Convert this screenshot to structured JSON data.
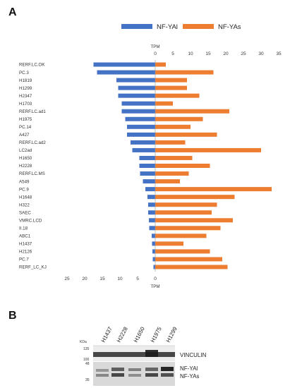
{
  "panels": {
    "a": {
      "letter": "A"
    },
    "b": {
      "letter": "B"
    }
  },
  "chart_data": {
    "type": "bar",
    "orientation": "horizontal",
    "layout": "diverging",
    "axis_title_top": "TPM",
    "axis_title_bottom": "TPM",
    "left_ticks": [
      25,
      20,
      15,
      10,
      5,
      0
    ],
    "right_ticks": [
      0,
      5,
      10,
      15,
      20,
      25,
      30,
      35
    ],
    "left_range": [
      0,
      25
    ],
    "right_range": [
      0,
      35
    ],
    "legend_position": "top",
    "categories": [
      "RERF.LC.OK",
      "PC.3",
      "H1819",
      "H1299",
      "H2347",
      "H1703",
      "RERF.LC.ad1",
      "H1975",
      "PC.14",
      "A427",
      "RERF.LC.ad2",
      "LC2ad",
      "H1650",
      "H2228",
      "RERF.LC.MS",
      "A549",
      "PC.9",
      "H1648",
      "H322",
      "SAEC",
      "VMRC.LCD",
      "II.18",
      "ABC1",
      "H1437",
      "H2126",
      "PC.7",
      "RERF_LC_KJ"
    ],
    "series": [
      {
        "name": "NF-YAl",
        "color": "#4472c4",
        "side": "left",
        "values": [
          17.5,
          16.5,
          11,
          10.5,
          10.5,
          9.5,
          9.5,
          8.5,
          8.0,
          8.0,
          7.0,
          6.5,
          4.5,
          4.5,
          4.3,
          3.5,
          2.8,
          2.2,
          2.0,
          2.0,
          1.8,
          1.7,
          1.0,
          0.9,
          0.8,
          0.7,
          0.5
        ]
      },
      {
        "name": "NF-YAs",
        "color": "#ed7d31",
        "side": "right",
        "values": [
          3.0,
          16.5,
          9.0,
          9.0,
          12.5,
          5.0,
          21.0,
          13.5,
          10.0,
          17.5,
          8.5,
          30.0,
          10.5,
          15.5,
          9.5,
          7.0,
          33.0,
          22.5,
          17.5,
          16.0,
          22.0,
          18.5,
          14.5,
          8.0,
          15.5,
          19.0,
          20.5
        ]
      }
    ]
  },
  "blot": {
    "lanes": [
      "H1437",
      "H2228",
      "H1650",
      "H1975",
      "H1299"
    ],
    "kda_label": "KDa",
    "markers": [
      "135",
      "100",
      "48",
      "35"
    ],
    "bands": [
      "VINCULIN",
      "NF-YAl",
      "NF-YAs"
    ]
  }
}
